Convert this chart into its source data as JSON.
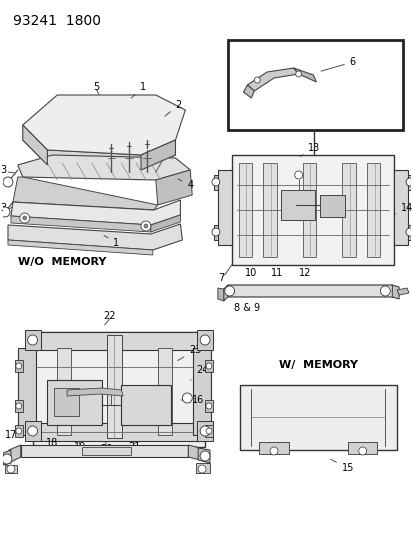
{
  "bg_color": "#ffffff",
  "title_text": "93241  1800",
  "title_fontsize": 10,
  "wo_memory_label": "W/O  MEMORY",
  "w_memory_label": "W/  MEMORY"
}
